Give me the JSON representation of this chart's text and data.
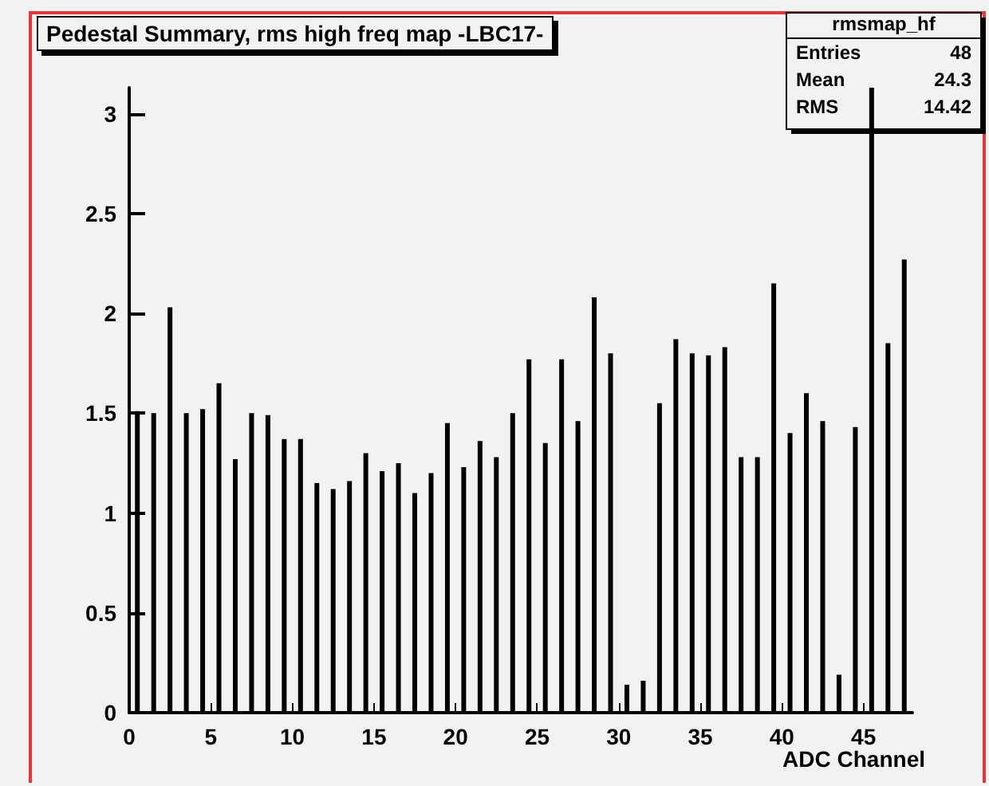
{
  "chart_data": {
    "type": "histogram",
    "title": "Pedestal Summary, rms high freq map -LBC17-",
    "xlabel": "ADC Channel",
    "bins": [
      0,
      1,
      2,
      3,
      4,
      5,
      6,
      7,
      8,
      9,
      10,
      11,
      12,
      13,
      14,
      15,
      16,
      17,
      18,
      19,
      20,
      21,
      22,
      23,
      24,
      25,
      26,
      27,
      28,
      29,
      30,
      31,
      32,
      33,
      34,
      35,
      36,
      37,
      38,
      39,
      40,
      41,
      42,
      43,
      44,
      45,
      46,
      47,
      48
    ],
    "values": [
      1.51,
      1.5,
      2.03,
      1.5,
      1.52,
      1.65,
      1.27,
      1.5,
      1.49,
      1.37,
      1.37,
      1.15,
      1.12,
      1.16,
      1.3,
      1.21,
      1.25,
      1.1,
      1.2,
      1.45,
      1.23,
      1.36,
      1.28,
      1.5,
      1.77,
      1.35,
      1.77,
      1.46,
      2.08,
      1.8,
      0.14,
      0.16,
      1.55,
      1.87,
      1.8,
      1.79,
      1.83,
      1.28,
      1.28,
      2.15,
      1.4,
      1.6,
      1.46,
      0.19,
      1.43,
      3.13,
      1.85,
      2.27
    ],
    "color": "#000000",
    "xlim": [
      0,
      48
    ],
    "xticks": [
      0,
      5,
      10,
      15,
      20,
      25,
      30,
      35,
      40,
      45
    ],
    "ylim": [
      0,
      3.13
    ],
    "yticks": [
      0,
      0.5,
      1,
      1.5,
      2,
      2.5,
      3
    ],
    "annotations": [
      "rmsmap_hf",
      "Entries 48",
      "Mean 24.3",
      "RMS 14.42"
    ]
  }
}
